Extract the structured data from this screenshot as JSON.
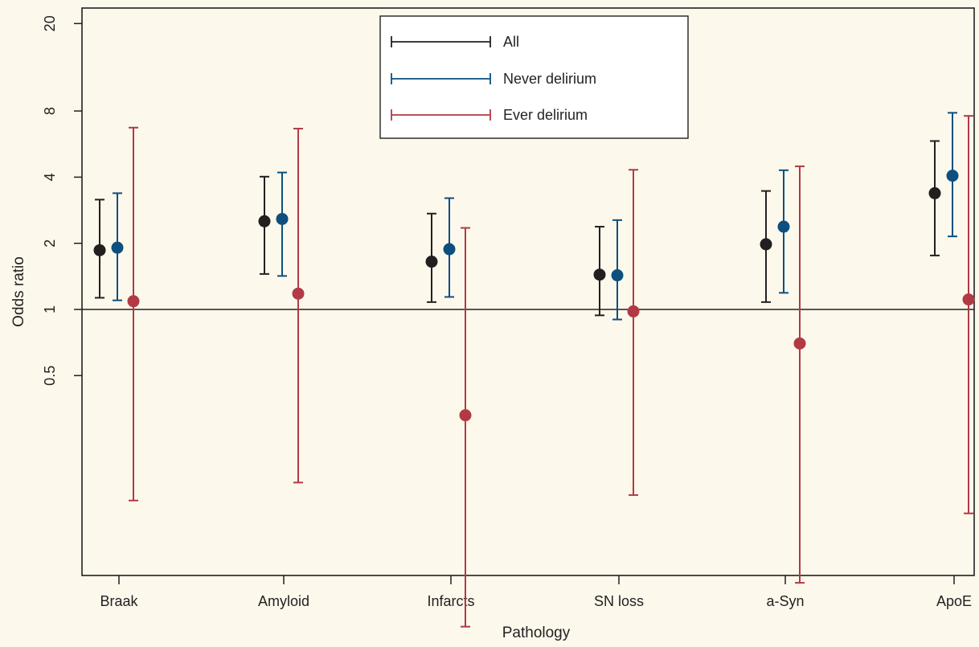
{
  "chart_data": {
    "type": "scatter",
    "subtype": "error-bar",
    "title": "",
    "xlabel": "Pathology",
    "ylabel": "Odds ratio",
    "y_scale": "log",
    "ylim": [
      0.08,
      22
    ],
    "y_ticks": [
      {
        "value": 0.5,
        "label": "0.5"
      },
      {
        "value": 1,
        "label": "1"
      },
      {
        "value": 2,
        "label": "2"
      },
      {
        "value": 4,
        "label": "4"
      },
      {
        "value": 8,
        "label": "8"
      },
      {
        "value": 20,
        "label": "20"
      }
    ],
    "reference_line": 1,
    "grid": false,
    "legend_position": "top-center",
    "categories": [
      "Braak",
      "Amyloid",
      "Infarcts",
      "SN loss",
      "a-Syn",
      "ApoE"
    ],
    "series": [
      {
        "name": "All",
        "color": "#231f20",
        "estimates": [
          1.86,
          2.52,
          1.65,
          1.44,
          1.98,
          3.38
        ],
        "lower": [
          1.13,
          1.45,
          1.08,
          0.94,
          1.08,
          1.76
        ],
        "upper": [
          3.16,
          4.02,
          2.73,
          2.38,
          3.46,
          5.84
        ]
      },
      {
        "name": "Never delirium",
        "color": "#0d4f7e",
        "estimates": [
          1.91,
          2.58,
          1.88,
          1.43,
          2.38,
          4.06
        ],
        "lower": [
          1.1,
          1.42,
          1.14,
          0.9,
          1.19,
          2.15
        ],
        "upper": [
          3.38,
          4.2,
          3.21,
          2.55,
          4.3,
          7.85
        ]
      },
      {
        "name": "Ever delirium",
        "color": "#b13a45",
        "estimates": [
          1.09,
          1.18,
          0.33,
          0.98,
          0.7,
          1.11
        ],
        "lower": [
          0.135,
          0.163,
          0.036,
          0.143,
          0.057,
          0.118
        ],
        "upper": [
          6.72,
          6.65,
          2.35,
          4.32,
          4.48,
          7.6
        ]
      }
    ]
  }
}
